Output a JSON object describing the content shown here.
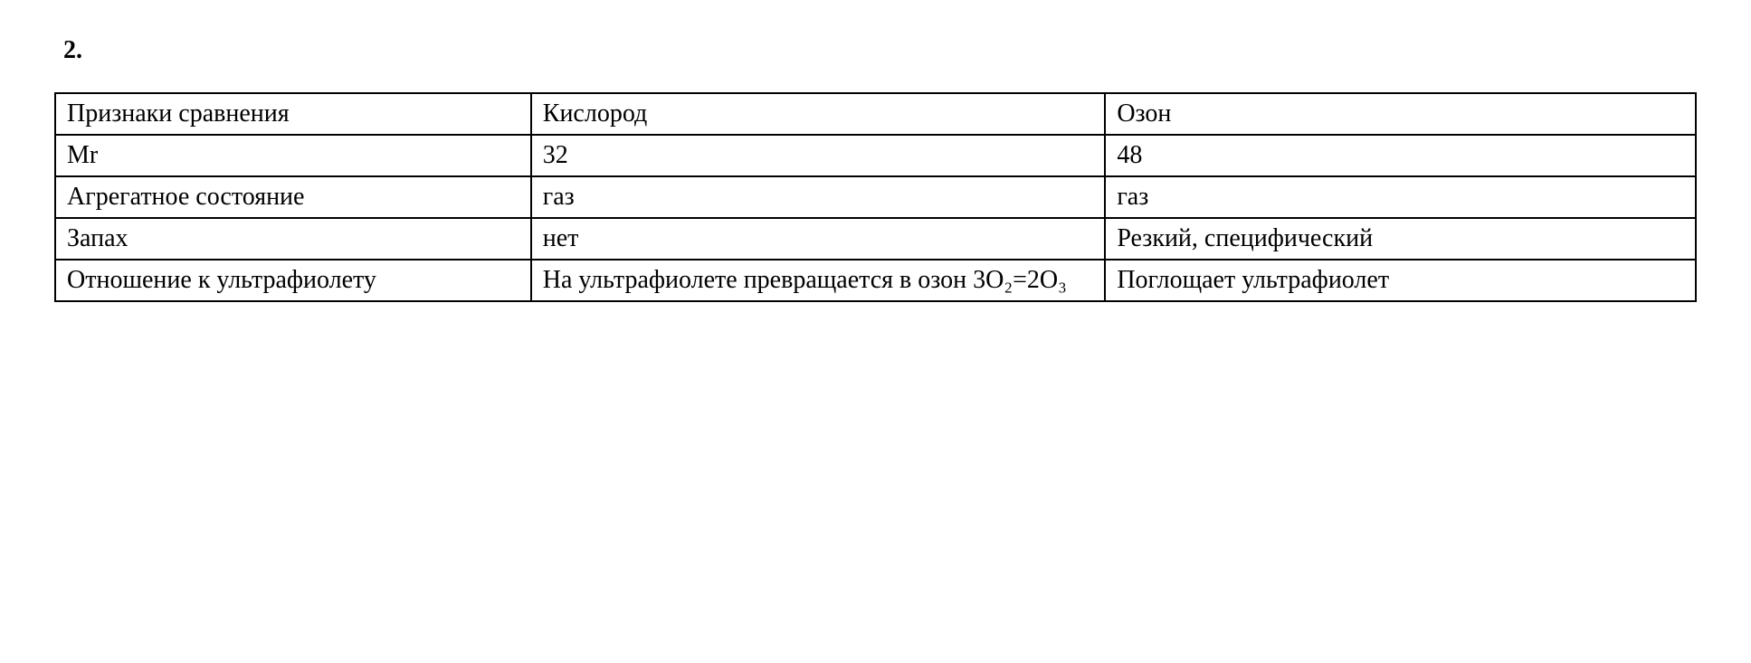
{
  "number_label": "2.",
  "table": {
    "columns": [
      {
        "class": "col1"
      },
      {
        "class": "col2"
      },
      {
        "class": "col3"
      }
    ],
    "rows": [
      [
        "Признаки сравнения",
        "Кислород",
        "Озон"
      ],
      [
        "Mr",
        "32",
        "48"
      ],
      [
        "Агрегатное состояние",
        "газ",
        "газ"
      ],
      [
        "Запах",
        "нет",
        "Резкий, специфический"
      ],
      [
        "Отношение к ультрафиолету",
        "На ультрафиолете превращается в озон 3О₂=2О₃",
        "Поглощает ультрафиолет"
      ]
    ],
    "border_color": "#000000",
    "background_color": "#ffffff",
    "font_family": "Times New Roman",
    "font_size_pt": 21,
    "text_color": "#000000"
  }
}
